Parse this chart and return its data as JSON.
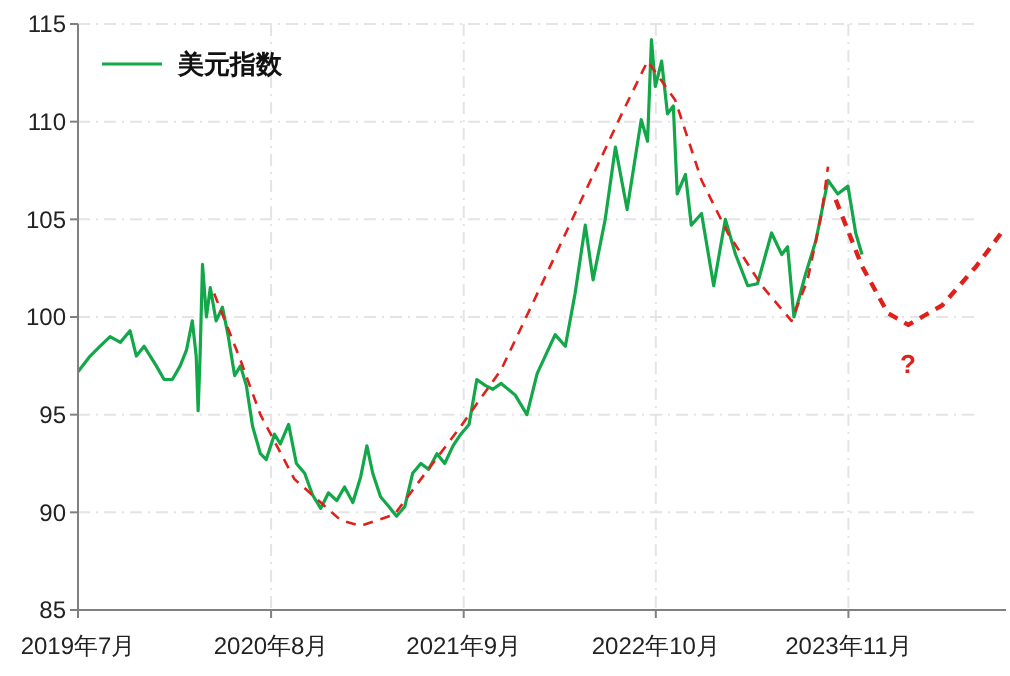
{
  "chart_data": {
    "type": "line",
    "xlim": [
      "2019-07-01",
      "2024-09-20"
    ],
    "xticks": [
      {
        "value": "2019-07-01",
        "label": "2019年7月"
      },
      {
        "value": "2020-08-01",
        "label": "2020年8月"
      },
      {
        "value": "2021-09-01",
        "label": "2021年9月"
      },
      {
        "value": "2022-10-01",
        "label": "2022年10月"
      },
      {
        "value": "2023-11-01",
        "label": "2023年11月"
      }
    ],
    "ylim": [
      85,
      115
    ],
    "yticks": [
      85,
      90,
      95,
      100,
      105,
      110,
      115
    ],
    "grid": true,
    "legend": "top left",
    "annotations": [
      "?"
    ],
    "series": [
      {
        "name": "美元指数",
        "color": "#12a84a",
        "x": [
          "2019-07-01",
          "2019-07-26",
          "2019-08-15",
          "2019-09-05",
          "2019-09-26",
          "2019-10-16",
          "2019-10-29",
          "2019-11-14",
          "2019-12-09",
          "2019-12-25",
          "2020-01-11",
          "2020-01-27",
          "2020-02-09",
          "2020-02-21",
          "2020-02-29",
          "2020-03-04",
          "2020-03-08",
          "2020-03-13",
          "2020-03-21",
          "2020-03-29",
          "2020-04-10",
          "2020-04-23",
          "2020-05-05",
          "2020-05-18",
          "2020-05-30",
          "2020-06-11",
          "2020-06-24",
          "2020-07-10",
          "2020-07-22",
          "2020-08-08",
          "2020-08-20",
          "2020-09-06",
          "2020-09-22",
          "2020-10-09",
          "2020-10-25",
          "2020-11-11",
          "2020-11-27",
          "2020-12-14",
          "2020-12-30",
          "2021-01-16",
          "2021-02-01",
          "2021-02-14",
          "2021-02-26",
          "2021-03-14",
          "2021-03-31",
          "2021-04-16",
          "2021-05-03",
          "2021-05-19",
          "2021-06-05",
          "2021-06-21",
          "2021-07-08",
          "2021-07-24",
          "2021-08-10",
          "2021-08-26",
          "2021-09-12",
          "2021-09-28",
          "2021-10-15",
          "2021-10-31",
          "2021-11-17",
          "2021-12-16",
          "2022-01-09",
          "2022-01-30",
          "2022-03-08",
          "2022-03-29",
          "2022-04-18",
          "2022-05-09",
          "2022-05-25",
          "2022-06-19",
          "2022-07-10",
          "2022-08-03",
          "2022-09-01",
          "2022-09-14",
          "2022-09-22",
          "2022-09-30",
          "2022-10-13",
          "2022-10-25",
          "2022-11-06",
          "2022-11-14",
          "2022-12-01",
          "2022-12-13",
          "2023-01-03",
          "2023-01-28",
          "2023-02-21",
          "2023-03-14",
          "2023-04-08",
          "2023-04-28",
          "2023-05-27",
          "2023-06-17",
          "2023-06-29",
          "2023-07-12",
          "2023-08-05",
          "2023-08-26",
          "2023-09-20",
          "2023-10-10",
          "2023-10-31",
          "2023-11-16",
          "2023-11-29"
        ],
        "values": [
          97.2,
          98,
          98.5,
          99,
          98.7,
          99.3,
          98,
          98.5,
          97.5,
          96.8,
          96.8,
          97.5,
          98.3,
          99.8,
          98,
          95.2,
          98,
          102.7,
          100,
          101.5,
          99.8,
          100.5,
          99,
          97,
          97.5,
          96.5,
          94.4,
          93,
          92.7,
          94,
          93.5,
          94.5,
          92.5,
          92,
          90.9,
          90.2,
          91,
          90.6,
          91.3,
          90.5,
          91.8,
          93.4,
          92,
          90.8,
          90.3,
          89.8,
          90.3,
          92,
          92.5,
          92.2,
          93,
          92.5,
          93.4,
          94,
          94.5,
          96.8,
          96.5,
          96.3,
          96.6,
          96,
          95,
          97.1,
          99.1,
          98.5,
          101.2,
          104.7,
          101.9,
          105,
          108.7,
          105.5,
          110.1,
          109,
          114.2,
          111.8,
          113.1,
          110.4,
          110.8,
          106.3,
          107.3,
          104.7,
          105.3,
          101.6,
          105,
          103.2,
          101.6,
          101.7,
          104.3,
          103.2,
          103.6,
          100,
          102.2,
          103.9,
          107,
          106.3,
          106.7,
          104.3,
          103.2
        ]
      },
      {
        "color": "#e0201b",
        "line_style": "dashed",
        "x": [
          "2020-04-06",
          "2020-05-30",
          "2020-07-10",
          "2020-09-18",
          "2020-12-22",
          "2021-02-01",
          "2021-04-12",
          "2021-06-05",
          "2021-08-26",
          "2021-11-17",
          "2022-02-07",
          "2022-05-01",
          "2022-07-23",
          "2022-09-14",
          "2022-11-10",
          "2023-01-03",
          "2023-02-26",
          "2023-05-07",
          "2023-07-07",
          "2023-08-09",
          "2023-09-07",
          "2023-09-20"
        ],
        "values": [
          101.2,
          97.8,
          95,
          91.7,
          89.6,
          89.3,
          89.9,
          91.7,
          94.4,
          97.3,
          101.6,
          106,
          110.4,
          113.1,
          111.1,
          107,
          104.3,
          101.6,
          99.8,
          101.9,
          105.3,
          107.7
        ]
      },
      {
        "color": "#e0201b",
        "line_style": "dashed",
        "x": [
          "2023-10-06",
          "2023-11-29",
          "2024-01-21",
          "2024-03-03",
          "2024-05-12",
          "2024-07-21",
          "2024-09-13"
        ],
        "values": [
          106,
          102.6,
          100.2,
          99.6,
          100.6,
          102.6,
          104.4
        ]
      }
    ]
  }
}
